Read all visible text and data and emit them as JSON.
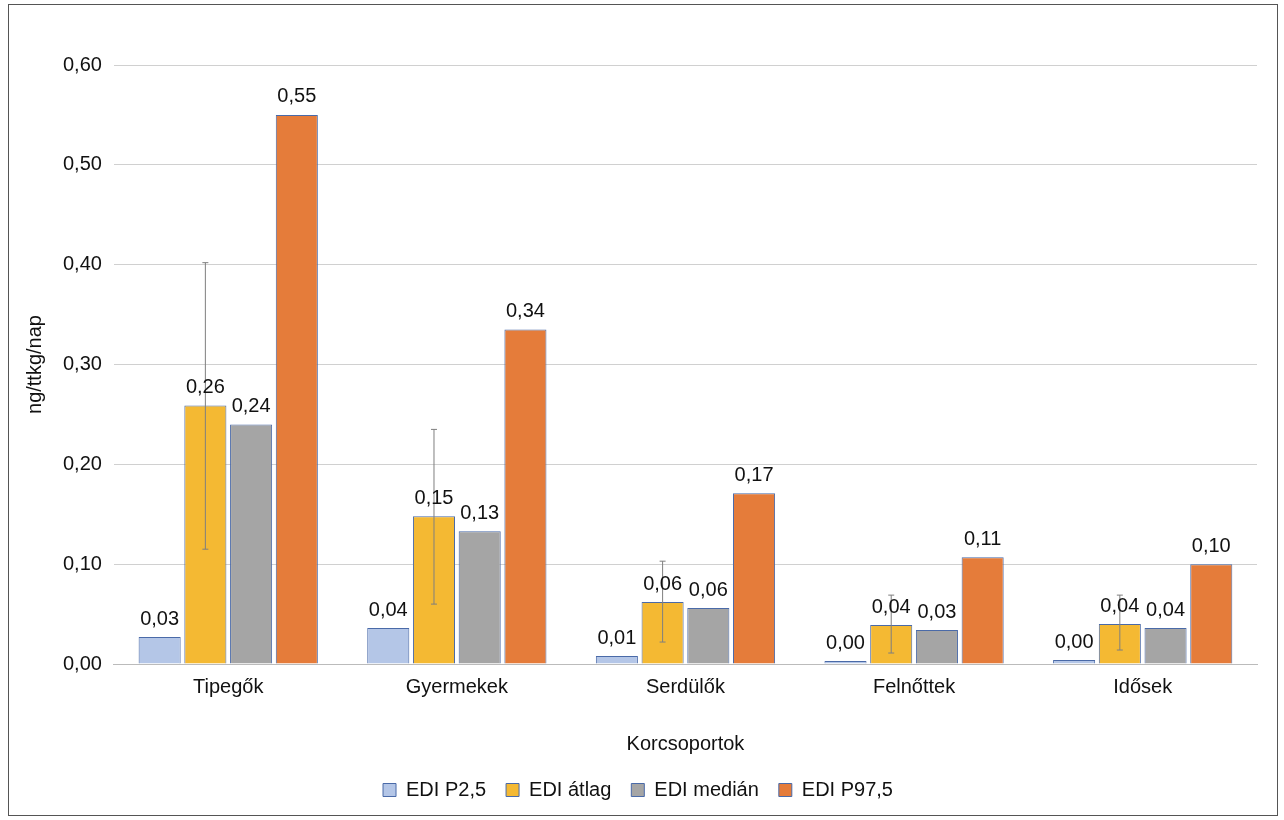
{
  "chart_data": {
    "type": "bar",
    "xlabel": "Korcsoportok",
    "ylabel": "ng/ttkg/nap",
    "categories": [
      "Tipegők",
      "Gyermekek",
      "Serdülők",
      "Felnőttek",
      "Idősek"
    ],
    "series": [
      {
        "name": "EDI P2,5",
        "color": "#b4c6e7",
        "values": [
          0.027,
          0.036,
          0.008,
          0.003,
          0.004
        ],
        "value_labels": [
          "0,03",
          "0,04",
          "0,01",
          "0,00",
          "0,00"
        ]
      },
      {
        "name": "EDI átlag",
        "color": "#f4b933",
        "values": [
          0.259,
          0.148,
          0.062,
          0.039,
          0.04
        ],
        "value_labels": [
          "0,26",
          "0,15",
          "0,06",
          "0,04",
          "0,04"
        ],
        "errors": [
          [
            0.115,
            0.402
          ],
          [
            0.06,
            0.235
          ],
          [
            0.022,
            0.103
          ],
          [
            0.011,
            0.069
          ],
          [
            0.014,
            0.069
          ]
        ]
      },
      {
        "name": "EDI medián",
        "color": "#a5a5a5",
        "values": [
          0.24,
          0.133,
          0.056,
          0.034,
          0.036
        ],
        "value_labels": [
          "0,24",
          "0,13",
          "0,06",
          "0,03",
          "0,04"
        ]
      },
      {
        "name": "EDI P97,5",
        "color": "#e57c3a",
        "values": [
          0.55,
          0.335,
          0.171,
          0.107,
          0.1
        ],
        "value_labels": [
          "0,55",
          "0,34",
          "0,17",
          "0,11",
          "0,10"
        ]
      }
    ],
    "ylim": [
      0,
      0.6
    ],
    "yticks": [
      {
        "value": 0,
        "label": "0,00"
      },
      {
        "value": 0.1,
        "label": "0,10"
      },
      {
        "value": 0.2,
        "label": "0,20"
      },
      {
        "value": 0.3,
        "label": "0,30"
      },
      {
        "value": 0.4,
        "label": "0,40"
      },
      {
        "value": 0.5,
        "label": "0,50"
      },
      {
        "value": 0.6,
        "label": "0,60"
      }
    ],
    "grid": "y",
    "legend": "bottom"
  }
}
